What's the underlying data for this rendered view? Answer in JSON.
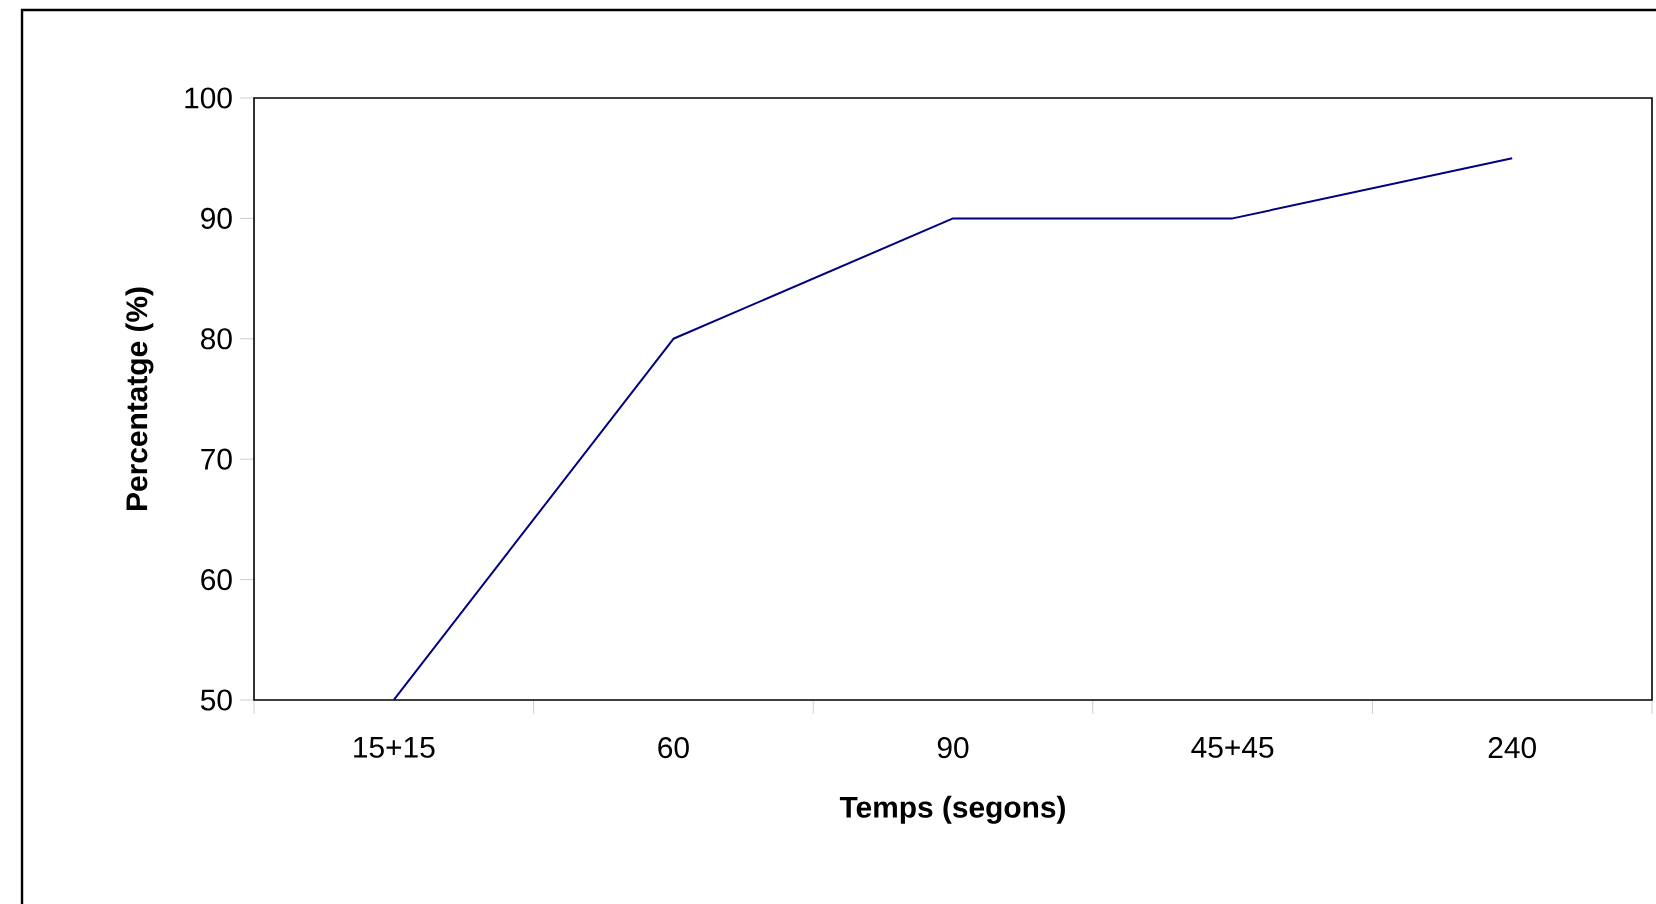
{
  "chart_data": {
    "type": "line",
    "xlabel": "Temps (segons)",
    "ylabel": "Percentatge (%)",
    "categories": [
      "15+15",
      "60",
      "90",
      "45+45",
      "240"
    ],
    "series": [
      {
        "color": "#000080",
        "values": [
          50,
          80,
          90,
          90,
          95
        ]
      }
    ],
    "ylim": [
      50,
      100
    ],
    "yticks": [
      50,
      60,
      70,
      80,
      90,
      100
    ],
    "grid": false,
    "legend": false,
    "marker": "none",
    "line_style": "solid"
  }
}
